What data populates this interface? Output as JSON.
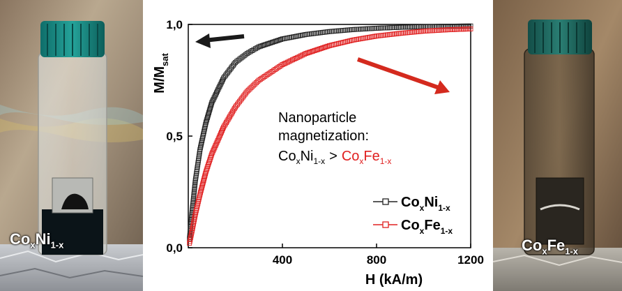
{
  "left_photo": {
    "label_main": "Co",
    "label_sub1": "x",
    "label_mid": "Ni",
    "label_sub2": "1-x"
  },
  "right_photo": {
    "label_main": "Co",
    "label_sub1": "x",
    "label_mid": "Fe",
    "label_sub2": "1-x"
  },
  "colors": {
    "series_coni": "#222222",
    "series_cofe": "#e02020",
    "arrow_left": "#1a1a1a",
    "arrow_right": "#d42a1e",
    "annotation_highlight": "#e02020"
  },
  "chart_data": {
    "type": "scatter",
    "xlabel": "H (kA/m)",
    "ylabel_main": "M/M",
    "ylabel_sub": "sat",
    "x_ticks": [
      "400",
      "800",
      "1200"
    ],
    "y_ticks": [
      "0,0",
      "0,5",
      "1,0"
    ],
    "xlim": [
      0,
      1200
    ],
    "ylim": [
      0,
      1.0
    ],
    "grid": false,
    "legend_position": "bottom-right",
    "annotation": {
      "line1": "Nanoparticle",
      "line2": "magnetization:",
      "coni_main": "Co",
      "coni_sub1": "x",
      "coni_mid": "Ni",
      "coni_sub2": "1-x",
      "gt": ">",
      "cofe_main": "Co",
      "cofe_sub1": "x",
      "cofe_mid": "Fe",
      "cofe_sub2": "1-x"
    },
    "series": [
      {
        "name": "CoxNi1-x",
        "legend_main": "Co",
        "legend_sub1": "x",
        "legend_mid": "Ni",
        "legend_sub2": "1-x",
        "marker": "open-square",
        "x": [
          5,
          15,
          30,
          50,
          75,
          100,
          150,
          200,
          250,
          300,
          400,
          500,
          600,
          700,
          800,
          900,
          1000,
          1100,
          1200
        ],
        "y": [
          0.04,
          0.15,
          0.3,
          0.44,
          0.56,
          0.65,
          0.76,
          0.83,
          0.87,
          0.9,
          0.935,
          0.955,
          0.968,
          0.977,
          0.983,
          0.987,
          0.99,
          0.992,
          0.993
        ]
      },
      {
        "name": "CoxFe1-x",
        "legend_main": "Co",
        "legend_sub1": "x",
        "legend_mid": "Fe",
        "legend_sub2": "1-x",
        "marker": "open-square",
        "x": [
          5,
          15,
          30,
          50,
          75,
          100,
          150,
          200,
          250,
          300,
          400,
          500,
          600,
          700,
          800,
          900,
          1000,
          1100,
          1200
        ],
        "y": [
          0.02,
          0.07,
          0.15,
          0.24,
          0.34,
          0.42,
          0.54,
          0.63,
          0.7,
          0.75,
          0.82,
          0.87,
          0.905,
          0.93,
          0.948,
          0.96,
          0.97,
          0.976,
          0.98
        ]
      }
    ]
  }
}
